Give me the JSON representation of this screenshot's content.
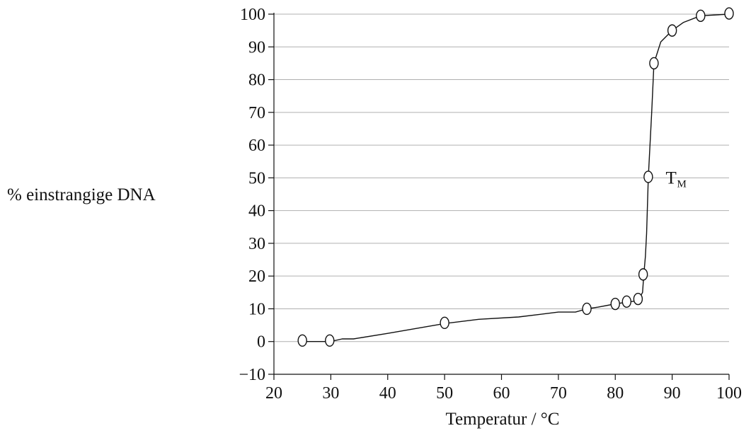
{
  "chart_data": {
    "type": "line",
    "title": "",
    "xlabel": "Temperatur / °C",
    "ylabel": "% einstrangige DNA",
    "xlim": [
      20,
      100
    ],
    "ylim": [
      -10,
      100
    ],
    "x_ticks": [
      20,
      30,
      40,
      50,
      60,
      70,
      80,
      90,
      100
    ],
    "y_ticks": [
      -10,
      0,
      10,
      20,
      30,
      40,
      50,
      60,
      70,
      80,
      90,
      100
    ],
    "x_tick_labels": [
      "20",
      "30",
      "40",
      "50",
      "60",
      "70",
      "80",
      "90",
      "100"
    ],
    "y_tick_labels": [
      "−10",
      "0",
      "10",
      "20",
      "30",
      "40",
      "50",
      "60",
      "70",
      "80",
      "90",
      "100"
    ],
    "grid": "horizontal",
    "annotation": {
      "text": "T",
      "subscript": "M",
      "x": 86,
      "y": 50
    },
    "curve": [
      {
        "x": 25,
        "y": 0
      },
      {
        "x": 30,
        "y": 0
      },
      {
        "x": 32,
        "y": 0.8
      },
      {
        "x": 34,
        "y": 0.8
      },
      {
        "x": 40,
        "y": 2.5
      },
      {
        "x": 50,
        "y": 5.5
      },
      {
        "x": 56,
        "y": 6.8
      },
      {
        "x": 63,
        "y": 7.5
      },
      {
        "x": 70,
        "y": 9
      },
      {
        "x": 73,
        "y": 9
      },
      {
        "x": 75,
        "y": 10
      },
      {
        "x": 77,
        "y": 10.5
      },
      {
        "x": 80,
        "y": 11.5
      },
      {
        "x": 82,
        "y": 12
      },
      {
        "x": 84,
        "y": 12.5
      },
      {
        "x": 84.8,
        "y": 15
      },
      {
        "x": 85.0,
        "y": 20
      },
      {
        "x": 85.3,
        "y": 26
      },
      {
        "x": 85.5,
        "y": 33
      },
      {
        "x": 85.8,
        "y": 50
      },
      {
        "x": 86.4,
        "y": 70
      },
      {
        "x": 86.8,
        "y": 85
      },
      {
        "x": 88,
        "y": 91.5
      },
      {
        "x": 90,
        "y": 95
      },
      {
        "x": 92,
        "y": 97.5
      },
      {
        "x": 95,
        "y": 99.5
      },
      {
        "x": 100,
        "y": 100
      }
    ],
    "points": [
      {
        "x": 25,
        "y": 0.3
      },
      {
        "x": 29.8,
        "y": 0.3
      },
      {
        "x": 50,
        "y": 5.7
      },
      {
        "x": 75,
        "y": 10
      },
      {
        "x": 80,
        "y": 11.5
      },
      {
        "x": 82,
        "y": 12.2
      },
      {
        "x": 84,
        "y": 13
      },
      {
        "x": 84.9,
        "y": 20.5
      },
      {
        "x": 85.8,
        "y": 50.3
      },
      {
        "x": 86.8,
        "y": 85
      },
      {
        "x": 90,
        "y": 95
      },
      {
        "x": 95,
        "y": 99.5
      },
      {
        "x": 100,
        "y": 100.2
      }
    ],
    "colors": {
      "line": "#111111",
      "grid": "#b0b0b0",
      "axis": "#111111"
    }
  }
}
